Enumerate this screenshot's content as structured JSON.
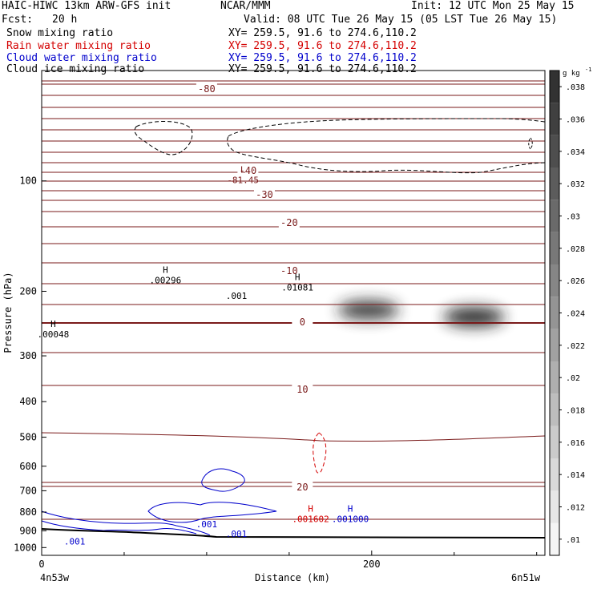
{
  "header": {
    "model": "HAIC-HIWC 13km ARW-GFS init",
    "org": "NCAR/MMM",
    "init": "Init: 12 UTC Mon 25 May 15",
    "fcst_label": "Fcst:",
    "fcst_value": "20 h",
    "valid": "Valid: 08 UTC Tue 26 May 15 (05 LST Tue 26 May 15)"
  },
  "legend": [
    {
      "name": "Snow mixing ratio",
      "xy": "XY= 259.5, 91.6 to 274.6,110.2",
      "color": "#000000"
    },
    {
      "name": "Rain water mixing ratio",
      "xy": "XY= 259.5, 91.6 to 274.6,110.2",
      "color": "#d40000"
    },
    {
      "name": "Cloud water mixing ratio",
      "xy": "XY= 259.5, 91.6 to 274.6,110.2",
      "color": "#0000cc"
    },
    {
      "name": "Cloud ice mixing ratio",
      "xy": "XY= 259.5, 91.6 to 274.6,110.2",
      "color": "#000000"
    }
  ],
  "chart_data": {
    "type": "line",
    "xlabel": "Distance (km)",
    "ylabel": "Pressure (hPa)",
    "xlim": [
      0,
      305
    ],
    "ylim": [
      50,
      1050
    ],
    "y_scale": "log",
    "x_ticks": [
      0,
      200
    ],
    "y_ticks": [
      100,
      200,
      300,
      400,
      500,
      600,
      700,
      800,
      900,
      1000
    ],
    "left_location": "4n53w",
    "right_location": "6n51w",
    "colorbar": {
      "unit": "g kg",
      "unit_exp": "-1",
      "ticks": [
        ".01",
        ".012",
        ".014",
        ".016",
        ".018",
        ".02",
        ".022",
        ".024",
        ".026",
        ".028",
        ".03",
        ".032",
        ".034",
        ".036",
        ".038"
      ]
    },
    "temperature_contours": [
      {
        "label": "-80",
        "x": 100
      },
      {
        "label": "-40",
        "x": 125
      },
      {
        "label": "-30",
        "x": 135
      },
      {
        "label": "-20",
        "x": 150
      },
      {
        "label": "-10",
        "x": 150
      },
      {
        "label": "0",
        "x": 158
      },
      {
        "label": "10",
        "x": 158
      },
      {
        "label": "20",
        "x": 158
      }
    ],
    "extrema": [
      {
        "type": "L",
        "value": "-81.45",
        "x": 122,
        "p": 97,
        "color": "#7a1a1a"
      },
      {
        "type": "H",
        "value": ".00296",
        "x": 75,
        "p": 182,
        "color": "#000000"
      },
      {
        "type": "H",
        "value": ".01081",
        "x": 155,
        "p": 190,
        "color": "#000000"
      },
      {
        "type": "H",
        "value": ".00048",
        "x": 7,
        "p": 255,
        "color": "#000000"
      },
      {
        "type": "H",
        "value": ".001602",
        "x": 163,
        "p": 815,
        "color": "#d40000"
      },
      {
        "type": "H",
        "value": ".001000",
        "x": 187,
        "p": 815,
        "color": "#0000cc"
      }
    ],
    "contour_labels": [
      {
        "text": ".001",
        "x": 118,
        "p": 210,
        "color": "#000000"
      },
      {
        "text": ".001",
        "x": 100,
        "p": 880,
        "color": "#0000cc"
      },
      {
        "text": ".001",
        "x": 118,
        "p": 935,
        "color": "#0000cc"
      },
      {
        "text": ".001",
        "x": 20,
        "p": 980,
        "color": "#0000cc"
      }
    ],
    "shading": [
      {
        "x": 198,
        "p": 225,
        "value": 0.034
      },
      {
        "x": 262,
        "p": 235,
        "value": 0.038
      }
    ]
  }
}
